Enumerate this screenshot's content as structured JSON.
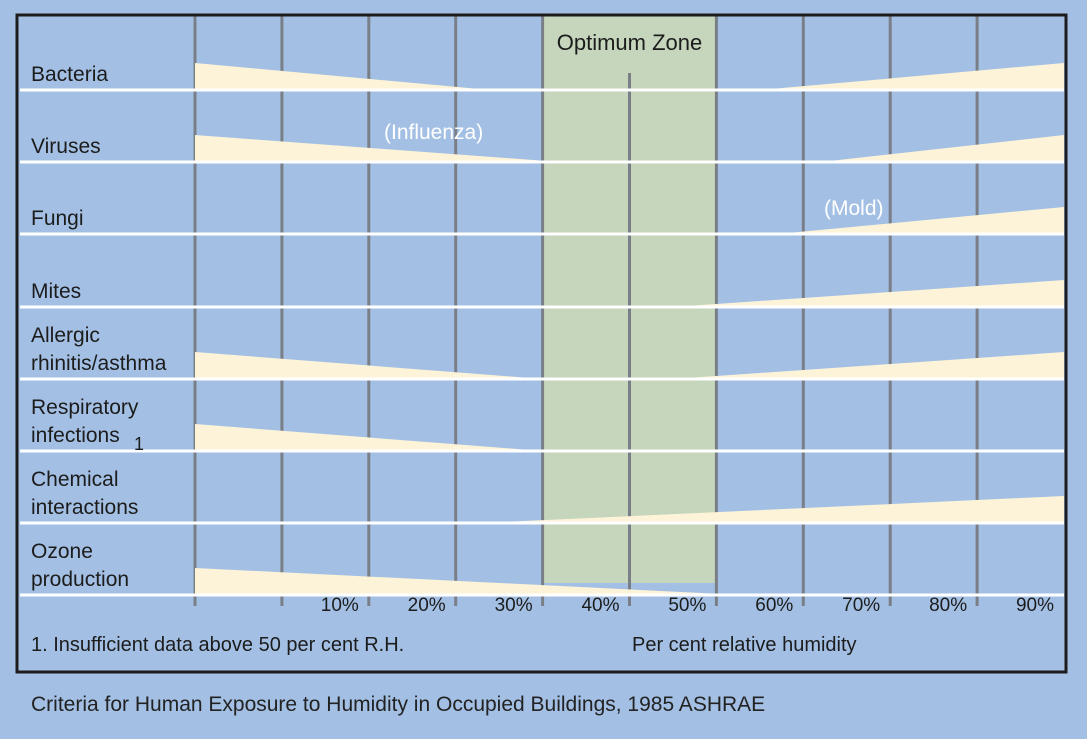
{
  "chart_data": {
    "type": "area",
    "title": "",
    "zone_label": "Optimum Zone",
    "optimum_zone": [
      40,
      60
    ],
    "x_axis": {
      "label": "Per cent relative humidity",
      "ticks": [
        0,
        10,
        20,
        30,
        40,
        50,
        60,
        70,
        80,
        90,
        100
      ],
      "tick_labels": [
        "10%",
        "20%",
        "30%",
        "40%",
        "50%",
        "60%",
        "70%",
        "80%",
        "90%"
      ]
    },
    "footnote": "1. Insufficient data above 50 per cent R.H.",
    "rows": [
      {
        "label_lines": [
          "Bacteria"
        ],
        "segments": [
          [
            [
              0,
              1.0
            ],
            [
              34,
              0
            ]
          ],
          [
            [
              65,
              0
            ],
            [
              100,
              1.0
            ]
          ]
        ]
      },
      {
        "label_lines": [
          "Viruses"
        ],
        "annotation": "(Influenza)",
        "segments": [
          [
            [
              0,
              1.0
            ],
            [
              42,
              0
            ]
          ],
          [
            [
              72,
              0
            ],
            [
              100,
              1.0
            ]
          ]
        ]
      },
      {
        "label_lines": [
          "Fungi"
        ],
        "annotation": "(Mold)",
        "segments": [
          [
            [
              67,
              0
            ],
            [
              100,
              1.0
            ]
          ]
        ]
      },
      {
        "label_lines": [
          "Mites"
        ],
        "segments": [
          [
            [
              55,
              0
            ],
            [
              100,
              1.0
            ]
          ]
        ]
      },
      {
        "label_lines": [
          "Allergic",
          "rhinitis/asthma"
        ],
        "segments": [
          [
            [
              0,
              1.0
            ],
            [
              40,
              0
            ]
          ],
          [
            [
              55,
              0
            ],
            [
              100,
              1.0
            ]
          ]
        ]
      },
      {
        "label_lines": [
          "Respiratory",
          "infections"
        ],
        "superscript": "1",
        "segments": [
          [
            [
              0,
              1.0
            ],
            [
              40,
              0
            ]
          ]
        ]
      },
      {
        "label_lines": [
          "Chemical",
          "interactions"
        ],
        "segments": [
          [
            [
              33,
              0
            ],
            [
              100,
              1.0
            ]
          ]
        ]
      },
      {
        "label_lines": [
          "Ozone",
          "production"
        ],
        "segments": [
          [
            [
              0,
              1.0
            ],
            [
              63,
              0
            ]
          ]
        ]
      }
    ]
  },
  "colors": {
    "background": "#a3c0e4",
    "optimum_zone": "#c5d6bc",
    "wedge": "#fdf3d8",
    "gridline": "#7a7f87",
    "row_line": "#ffffff",
    "border": "#1c1c1c",
    "annotation_text": "#ffffff"
  },
  "caption": "Criteria for Human Exposure to Humidity in Occupied Buildings, 1985 ASHRAE"
}
